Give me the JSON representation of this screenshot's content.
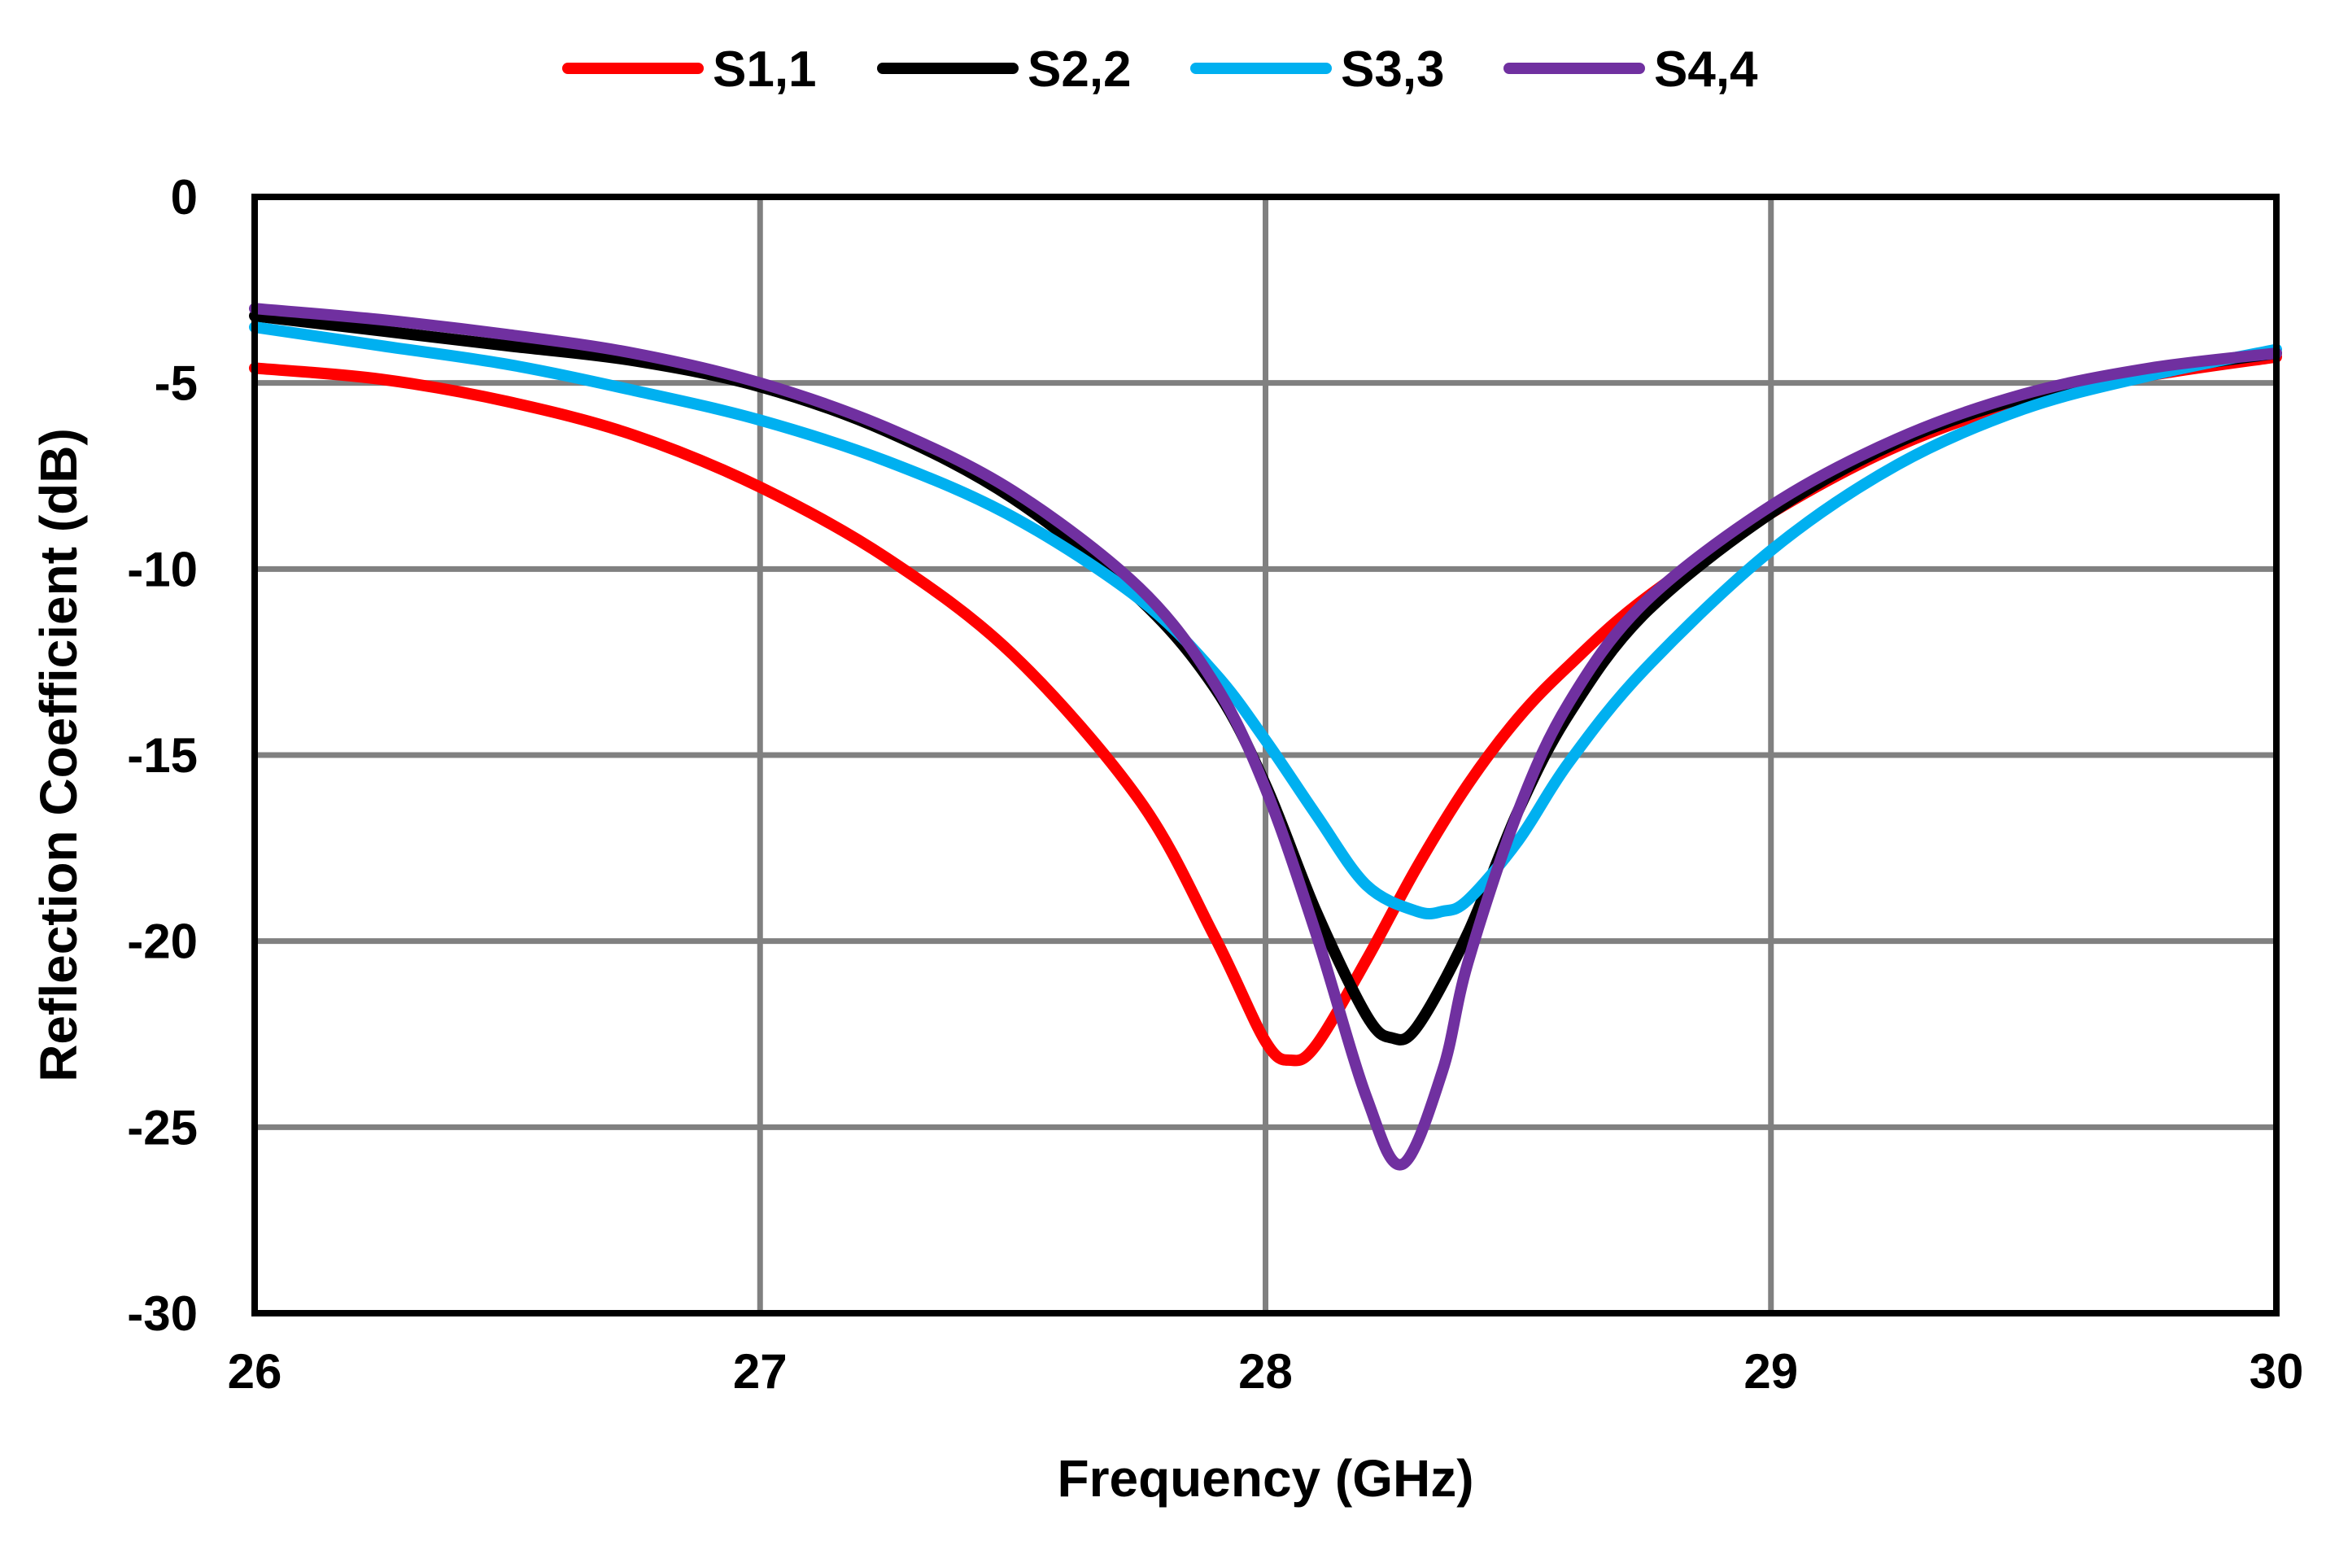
{
  "chart_data": {
    "type": "line",
    "xlabel": "Frequency (GHz)",
    "ylabel": "Reflection Coefficient (dB)",
    "xlim": [
      26,
      30
    ],
    "ylim": [
      -30,
      0
    ],
    "xticks": [
      26,
      27,
      28,
      29,
      30
    ],
    "yticks": [
      0,
      -5,
      -10,
      -15,
      -20,
      -25,
      -30
    ],
    "xtick_labels": [
      "26",
      "27",
      "28",
      "29",
      "30"
    ],
    "ytick_labels": [
      "0",
      "-5",
      "-10",
      "-15",
      "-20",
      "-25",
      "-30"
    ],
    "grid": true,
    "legend_position": "top",
    "series": [
      {
        "name": "S1,1",
        "color": "#ff0000",
        "x": [
          26,
          26.25,
          26.5,
          26.75,
          27,
          27.25,
          27.5,
          27.75,
          27.9,
          28.0,
          28.05,
          28.1,
          28.2,
          28.3,
          28.4,
          28.5,
          28.6,
          28.75,
          29,
          29.25,
          29.5,
          29.75,
          30
        ],
        "y": [
          -4.6,
          -4.9,
          -5.5,
          -6.4,
          -7.8,
          -9.7,
          -12.3,
          -16.2,
          -19.9,
          -22.7,
          -23.2,
          -22.8,
          -20.5,
          -18.0,
          -15.8,
          -14.0,
          -12.6,
          -10.8,
          -8.5,
          -6.7,
          -5.5,
          -4.8,
          -4.3
        ]
      },
      {
        "name": "S2,2",
        "color": "#000000",
        "x": [
          26,
          26.25,
          26.5,
          26.75,
          27,
          27.25,
          27.5,
          27.75,
          27.9,
          28.0,
          28.1,
          28.2,
          28.25,
          28.3,
          28.4,
          28.5,
          28.6,
          28.75,
          29,
          29.25,
          29.5,
          29.75,
          30
        ],
        "y": [
          -3.2,
          -3.6,
          -4.0,
          -4.4,
          -5.1,
          -6.3,
          -8.1,
          -10.8,
          -13.2,
          -15.8,
          -19.2,
          -22.0,
          -22.6,
          -22.3,
          -19.8,
          -16.5,
          -13.9,
          -11.2,
          -8.5,
          -6.6,
          -5.4,
          -4.7,
          -4.2
        ]
      },
      {
        "name": "S3,3",
        "color": "#00b0f0",
        "x": [
          26,
          26.25,
          26.5,
          26.75,
          27,
          27.25,
          27.5,
          27.75,
          27.9,
          28.0,
          28.1,
          28.2,
          28.3,
          28.35,
          28.4,
          28.5,
          28.6,
          28.75,
          29,
          29.25,
          29.5,
          29.75,
          30
        ],
        "y": [
          -3.5,
          -4.0,
          -4.5,
          -5.2,
          -6.0,
          -7.1,
          -8.6,
          -10.8,
          -12.8,
          -14.6,
          -16.6,
          -18.5,
          -19.2,
          -19.2,
          -18.9,
          -17.3,
          -15.2,
          -12.7,
          -9.5,
          -7.2,
          -5.7,
          -4.8,
          -4.1
        ]
      },
      {
        "name": "S4,4",
        "color": "#7030a0",
        "x": [
          26,
          26.25,
          26.5,
          26.75,
          27,
          27.25,
          27.5,
          27.75,
          27.9,
          28.0,
          28.1,
          28.2,
          28.27,
          28.35,
          28.4,
          28.5,
          28.6,
          28.75,
          29,
          29.25,
          29.5,
          29.75,
          30
        ],
        "y": [
          -3.0,
          -3.3,
          -3.7,
          -4.2,
          -5.0,
          -6.2,
          -7.9,
          -10.5,
          -13.1,
          -15.9,
          -19.8,
          -24.2,
          -26.0,
          -23.5,
          -20.6,
          -16.5,
          -13.6,
          -10.9,
          -8.3,
          -6.5,
          -5.3,
          -4.6,
          -4.2
        ]
      }
    ]
  }
}
